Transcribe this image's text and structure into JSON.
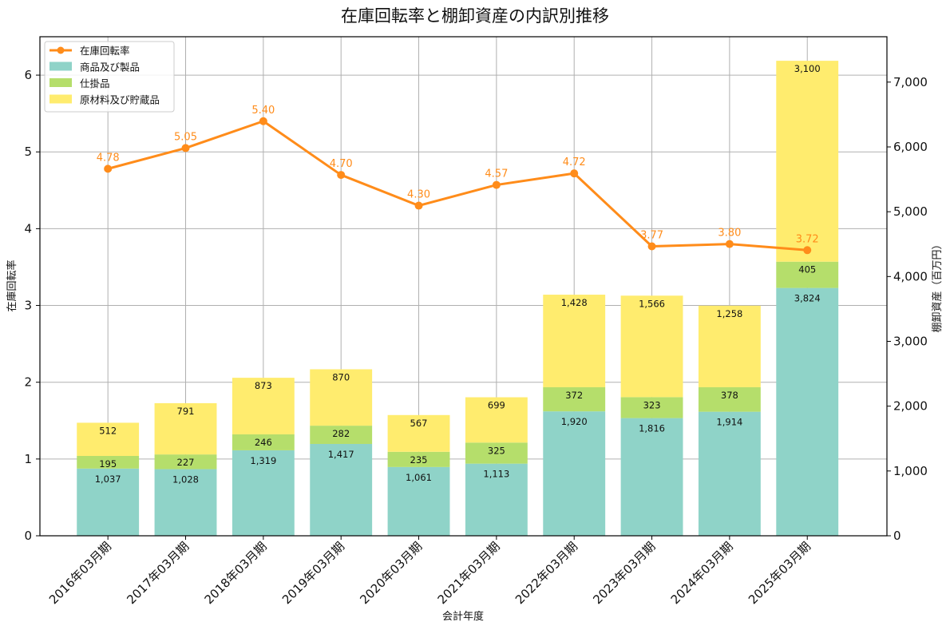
{
  "chart_data": {
    "type": "bar",
    "title": "在庫回転率と棚卸資産の内訳別推移",
    "xlabel": "会計年度",
    "ylabel_left": "在庫回転率",
    "ylabel_right": "棚卸資産（百万円）",
    "categories": [
      "2016年03月期",
      "2017年03月期",
      "2018年03月期",
      "2019年03月期",
      "2020年03月期",
      "2021年03月期",
      "2022年03月期",
      "2023年03月期",
      "2024年03月期",
      "2025年03月期"
    ],
    "stacked_series": [
      {
        "name": "商品及び製品",
        "color": "#8fd3c8",
        "values": [
          1037,
          1028,
          1319,
          1417,
          1061,
          1113,
          1920,
          1816,
          1914,
          3824
        ],
        "labels": [
          "1,037",
          "1,028",
          "1,319",
          "1,417",
          "1,061",
          "1,113",
          "1,920",
          "1,816",
          "1,914",
          "3,824"
        ]
      },
      {
        "name": "仕掛品",
        "color": "#b5de6b",
        "values": [
          195,
          227,
          246,
          282,
          235,
          325,
          372,
          323,
          378,
          405
        ],
        "labels": [
          "195",
          "227",
          "246",
          "282",
          "235",
          "325",
          "372",
          "323",
          "378",
          "405"
        ]
      },
      {
        "name": "原材料及び貯蔵品",
        "color": "#ffec6e",
        "values": [
          512,
          791,
          873,
          870,
          567,
          699,
          1428,
          1566,
          1258,
          3100
        ],
        "labels": [
          "512",
          "791",
          "873",
          "870",
          "567",
          "699",
          "1,428",
          "1,566",
          "1,258",
          "3,100"
        ]
      }
    ],
    "line_series": {
      "name": "在庫回転率",
      "color": "#ff8c1a",
      "values": [
        4.78,
        5.05,
        5.4,
        4.7,
        4.3,
        4.57,
        4.72,
        3.77,
        3.8,
        3.72
      ],
      "labels": [
        "4.78",
        "5.05",
        "5.40",
        "4.70",
        "4.30",
        "4.57",
        "4.72",
        "3.77",
        "3.80",
        "3.72"
      ]
    },
    "y_left": {
      "range": [
        0,
        6.5
      ],
      "ticks": [
        0,
        1,
        2,
        3,
        4,
        5,
        6
      ],
      "tick_labels": [
        "0",
        "1",
        "2",
        "3",
        "4",
        "5",
        "6"
      ]
    },
    "y_right": {
      "range": [
        0,
        7700
      ],
      "ticks": [
        0,
        1000,
        2000,
        3000,
        4000,
        5000,
        6000,
        7000
      ],
      "tick_labels": [
        "0",
        "1,000",
        "2,000",
        "3,000",
        "4,000",
        "5,000",
        "6,000",
        "7,000"
      ]
    },
    "grid": true,
    "legend_position": "top-left"
  }
}
